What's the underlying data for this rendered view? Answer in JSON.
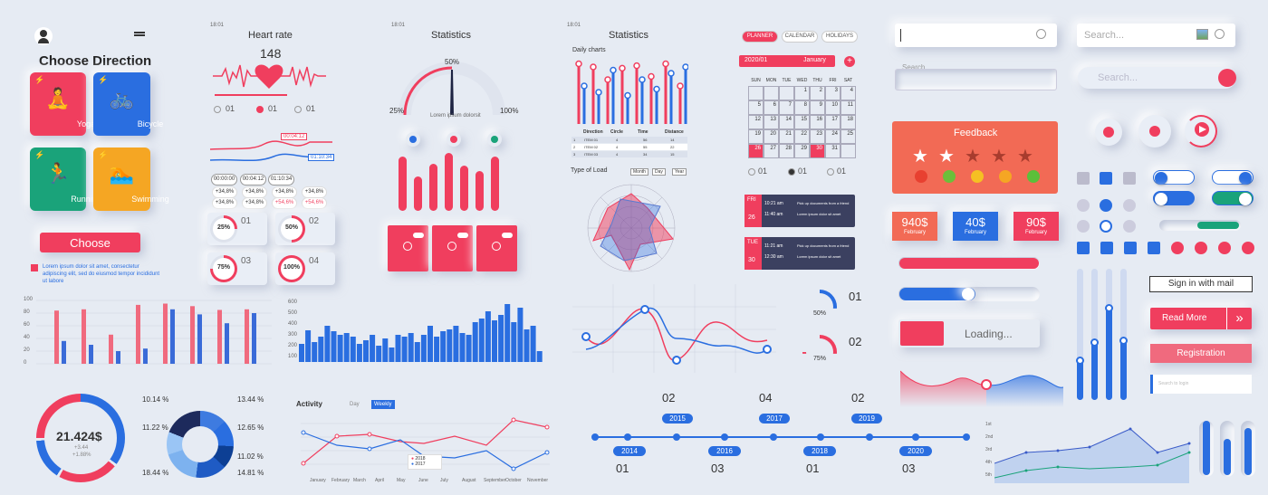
{
  "colors": {
    "red": "#f03e5e",
    "blue": "#2a6ee0",
    "green": "#1aa37a",
    "orange": "#f5a623",
    "coral": "#f26a55",
    "navy": "#3b4060"
  },
  "phone": {
    "time": "18:01"
  },
  "choose": {
    "title": "Choose Direction",
    "button": "Choose",
    "note": "Lorem ipsum dolor sit amet, consectetur adipiscing elit, sed do eiusmod tempor incididunt ut labore",
    "cards": [
      {
        "label": "Yoga",
        "icon": "yoga-icon"
      },
      {
        "label": "Bicycle",
        "icon": "bicycle-icon"
      },
      {
        "label": "Running",
        "icon": "running-icon"
      },
      {
        "label": "Swimming",
        "icon": "swimming-icon"
      }
    ]
  },
  "heart": {
    "title": "Heart rate",
    "value": "148",
    "tag1": "00:04:12",
    "tag2": "01:10:34",
    "options": [
      {
        "num": "01"
      },
      {
        "num": "01"
      },
      {
        "num": "01"
      }
    ],
    "times": [
      "00:00:00",
      "00:04:12",
      "01:10:34"
    ],
    "pct_rows": [
      [
        "+34,8%",
        "+34,8%",
        "+34,8%",
        "+34,8%"
      ],
      [
        "+34,8%",
        "+34,8%",
        "+54,6%",
        "+54,6%"
      ]
    ],
    "rings": [
      {
        "pct": "25%",
        "num": "01"
      },
      {
        "pct": "50%",
        "num": "02"
      },
      {
        "pct": "75%",
        "num": "03"
      },
      {
        "pct": "100%",
        "num": "04"
      }
    ]
  },
  "stats1": {
    "title": "Statistics",
    "gauge_top": "50%",
    "gauge_left": "25%",
    "gauge_right": "100%",
    "gauge_caption": "Lorem ipsum dolorsit"
  },
  "stats2": {
    "title": "Statistics",
    "daily": "Daily charts",
    "type_of_load": "Type of Load",
    "sel1": "Month",
    "sel2": "Day",
    "sel3": "Year",
    "table_head": [
      "Direction",
      "Circle",
      "Time",
      "Distance"
    ],
    "table_rows": [
      [
        "1",
        "ITEM 01",
        "4",
        "56",
        "14"
      ],
      [
        "2",
        "ITEM 02",
        "4",
        "55",
        "22"
      ],
      [
        "3",
        "ITEM 03",
        "4",
        "34",
        "15"
      ]
    ]
  },
  "planner": {
    "tabs": [
      "PLANNER",
      "CALENDAR",
      "HOLIDAYS"
    ],
    "year": "2020/01",
    "month": "January",
    "plus": "+",
    "days": [
      "SUN",
      "MON",
      "TUE",
      "WED",
      "THU",
      "FRI",
      "SAT"
    ],
    "weeks": [
      [
        "",
        "",
        "",
        "1",
        "2",
        "3",
        "4"
      ],
      [
        "5",
        "6",
        "7",
        "8",
        "9",
        "10",
        "11"
      ],
      [
        "12",
        "13",
        "14",
        "15",
        "16",
        "17",
        "18"
      ],
      [
        "19",
        "20",
        "21",
        "22",
        "23",
        "24",
        "25"
      ],
      [
        "26",
        "27",
        "28",
        "29",
        "30",
        "31",
        ""
      ]
    ],
    "events": [
      {
        "day": "FRI",
        "date": "26",
        "items": [
          [
            "10:21 am",
            "Pick up documents from a friend"
          ],
          [
            "11:40 am",
            "Lorem ipsum dolor sit amet"
          ]
        ]
      },
      {
        "day": "TUE",
        "date": "30",
        "items": [
          [
            "11:21 am",
            "Pick up documents from a friend"
          ],
          [
            "12:30 am",
            "Lorem ipsum dolor sit amet"
          ]
        ]
      }
    ],
    "opts": [
      "01",
      "01",
      "01"
    ]
  },
  "forms": {
    "search_ph": "Search",
    "search2_ph": "Search...",
    "search3_ph": "Search...",
    "loading": "Loading...",
    "feedback": "Feedback",
    "prices": [
      {
        "amount": "940$",
        "month": "February"
      },
      {
        "amount": "40$",
        "month": "February"
      },
      {
        "amount": "90$",
        "month": "February"
      }
    ],
    "sign_in": "Sign in with mail",
    "read_more": "Read More",
    "registration": "Registration",
    "login_ph": "Search to login"
  },
  "bars1": {
    "yticks": [
      "100",
      "80",
      "60",
      "40",
      "20",
      "0"
    ]
  },
  "bars2": {
    "yticks": [
      "600",
      "500",
      "400",
      "300",
      "200",
      "100"
    ]
  },
  "donut": {
    "value": "21.424$",
    "sub1": "+3.44",
    "sub2": "+1.88%"
  },
  "ring2": {
    "labels": [
      "10.14 %",
      "11.22 %",
      "18.44 %",
      "13.44 %",
      "12.65 %",
      "11.02 %",
      "14.81 %"
    ]
  },
  "activity": {
    "title": "Activity",
    "tab_day": "Day",
    "tab_weekly": "Weekly",
    "legend": [
      "2018",
      "2017"
    ],
    "months": [
      "January",
      "February",
      "March",
      "April",
      "May",
      "June",
      "July",
      "August",
      "September",
      "October",
      "November"
    ]
  },
  "gauges": [
    {
      "pct": "50%",
      "num": "01"
    },
    {
      "pct": "75%",
      "num": "02"
    }
  ],
  "timeline": {
    "top": [
      {
        "year": "2015",
        "num": "02"
      },
      {
        "year": "2017",
        "num": "04"
      },
      {
        "year": "2019",
        "num": "02"
      }
    ],
    "bottom": [
      {
        "year": "2014",
        "num": "01"
      },
      {
        "year": "2016",
        "num": "03"
      },
      {
        "year": "2018",
        "num": "01"
      },
      {
        "year": "2020",
        "num": "03"
      }
    ]
  },
  "area": {
    "yticks": [
      "1st",
      "2nd",
      "3rd",
      "4th",
      "5th"
    ]
  }
}
